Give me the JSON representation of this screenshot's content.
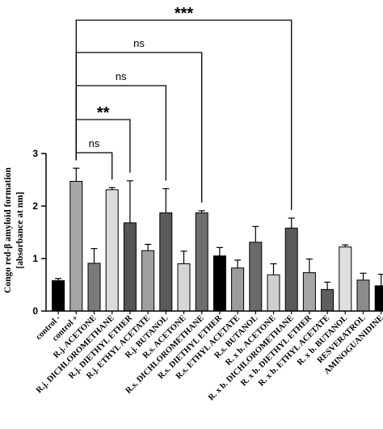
{
  "chart_data": {
    "type": "bar",
    "ylabel_line1": "Congo red-β amyloid formation",
    "ylabel_line2": "[absorbance at nm]",
    "ylim": [
      0,
      3
    ],
    "yticks": [
      "0",
      "1",
      "2",
      "3"
    ],
    "categories": [
      "control -",
      "control +",
      "R.j. ACETONE",
      "R.j. DICHLOROMETHANE",
      "R.j. DIETHYL ETHER",
      "R.j. ETHYL ACETATE",
      "R.j. BUTANOL",
      "R.s. ACETONE",
      "R.s. DICHLOROMETHANE",
      "R.s. DIETHYL ETHER",
      "R.s. ETHYL ACETATE",
      "R.s. BUTANOL",
      "R. x b. ACETONE",
      "R. x b. DICHLOROMETHANE",
      "R. x b. DIETHYL ETHER",
      "R. x b. ETHYL ACETATE",
      "R. x b. BUTANOL",
      "RESVERATROL",
      "AMINOGUANIDINE"
    ],
    "values": [
      0.58,
      2.47,
      0.91,
      2.31,
      1.68,
      1.15,
      1.87,
      0.9,
      1.87,
      1.05,
      0.82,
      1.31,
      0.69,
      1.58,
      0.73,
      0.41,
      1.22,
      0.59,
      0.48
    ],
    "errors": [
      0.04,
      0.25,
      0.28,
      0.04,
      0.8,
      0.12,
      0.46,
      0.24,
      0.04,
      0.16,
      0.15,
      0.3,
      0.21,
      0.19,
      0.26,
      0.14,
      0.04,
      0.13,
      0.22
    ],
    "bar_colors": [
      "#000000",
      "#a6a6a6",
      "#7a7a7a",
      "#dcdcdc",
      "#555555",
      "#a0a0a0",
      "#5a5a5a",
      "#d6d6d6",
      "#6e6e6e",
      "#000000",
      "#9c9c9c",
      "#6a6a6a",
      "#cfcfcf",
      "#5a5a5a",
      "#a6a6a6",
      "#5e5e5e",
      "#dedede",
      "#8c8c8c",
      "#000000"
    ],
    "comparisons": [
      {
        "from": 1,
        "to": 3,
        "label": "ns",
        "level": 1
      },
      {
        "from": 1,
        "to": 4,
        "label": "**",
        "level": 2
      },
      {
        "from": 1,
        "to": 6,
        "label": "ns",
        "level": 3
      },
      {
        "from": 1,
        "to": 8,
        "label": "ns",
        "level": 4
      },
      {
        "from": 1,
        "to": 13,
        "label": "***",
        "level": 5
      }
    ],
    "grid": false
  }
}
